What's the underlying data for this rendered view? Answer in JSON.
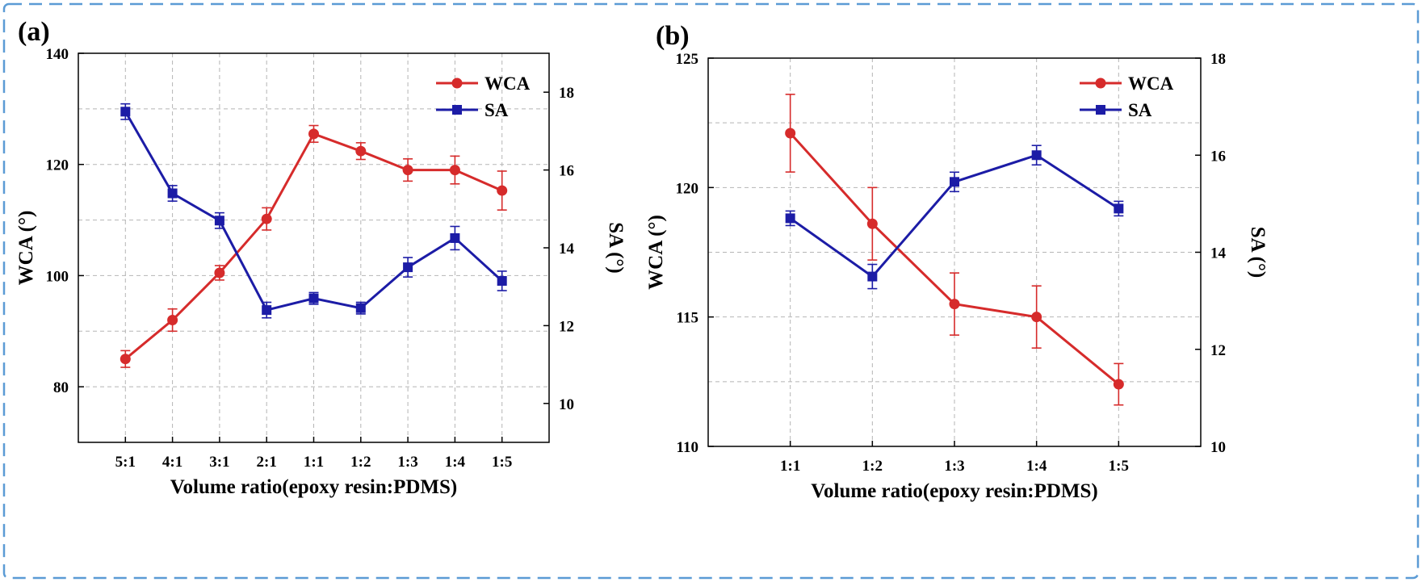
{
  "chart_data": [
    {
      "type": "line",
      "panel_label": "(a)",
      "categories": [
        "5:1",
        "4:1",
        "3:1",
        "2:1",
        "1:1",
        "1:2",
        "1:3",
        "1:4",
        "1:5"
      ],
      "xlabel": "Volume ratio(epoxy resin:PDMS)",
      "ylabel_left": "WCA (°)",
      "ylabel_right": "SA (°)",
      "ylim_left": [
        70,
        140
      ],
      "yticks_left": [
        80,
        100,
        120,
        140
      ],
      "ylim_right": [
        9,
        19
      ],
      "yticks_right": [
        10,
        12,
        14,
        16,
        18
      ],
      "grid": true,
      "legend_position": "top-right",
      "series": [
        {
          "name": "WCA",
          "axis": "left",
          "color": "#d62b2b",
          "marker": "circle",
          "values": [
            85.0,
            92.0,
            100.5,
            110.2,
            125.5,
            122.4,
            119.0,
            119.0,
            115.3
          ],
          "errors": [
            1.5,
            2.0,
            1.3,
            2.0,
            1.5,
            1.5,
            2.0,
            2.5,
            3.5
          ]
        },
        {
          "name": "SA",
          "axis": "right",
          "color": "#1c1ca6",
          "marker": "square",
          "values": [
            17.5,
            15.4,
            14.7,
            12.4,
            12.7,
            12.45,
            13.5,
            14.25,
            13.15
          ],
          "errors": [
            0.2,
            0.2,
            0.2,
            0.2,
            0.15,
            0.15,
            0.25,
            0.3,
            0.25
          ]
        }
      ]
    },
    {
      "type": "line",
      "panel_label": "(b)",
      "categories": [
        "1:1",
        "1:2",
        "1:3",
        "1:4",
        "1:5"
      ],
      "xlabel": "Volume ratio(epoxy resin:PDMS)",
      "ylabel_left": "WCA (°)",
      "ylabel_right": "SA (°)",
      "ylim_left": [
        110,
        125
      ],
      "yticks_left": [
        110,
        115,
        120,
        125
      ],
      "ylim_right": [
        10,
        18
      ],
      "yticks_right": [
        10,
        12,
        14,
        16,
        18
      ],
      "grid": true,
      "legend_position": "top-right",
      "series": [
        {
          "name": "WCA",
          "axis": "left",
          "color": "#d62b2b",
          "marker": "circle",
          "values": [
            122.1,
            118.6,
            115.5,
            115.0,
            112.4
          ],
          "errors": [
            1.5,
            1.4,
            1.2,
            1.2,
            0.8
          ]
        },
        {
          "name": "SA",
          "axis": "right",
          "color": "#1c1ca6",
          "marker": "square",
          "values": [
            14.7,
            13.5,
            15.45,
            16.0,
            14.9
          ],
          "errors": [
            0.15,
            0.25,
            0.2,
            0.2,
            0.15
          ]
        }
      ]
    }
  ]
}
